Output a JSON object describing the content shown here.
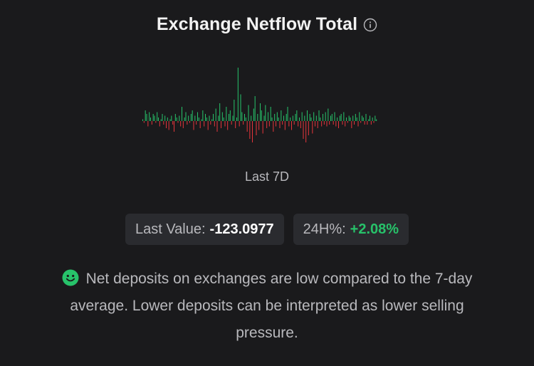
{
  "header": {
    "title": "Exchange Netflow Total",
    "info_icon": "info-circle-icon"
  },
  "chart_data": {
    "type": "bar",
    "caption": "Last 7D",
    "positive_color": "#27c26a",
    "negative_color": "#e5363b",
    "values": [
      1,
      -1,
      6,
      4,
      -3,
      5,
      2,
      -2,
      4,
      3,
      -1,
      5,
      2,
      -3,
      1,
      4,
      -2,
      3,
      -4,
      2,
      -5,
      1,
      3,
      -2,
      -6,
      4,
      2,
      -1,
      3,
      -3,
      8,
      -4,
      2,
      5,
      -2,
      3,
      -1,
      4,
      6,
      -5,
      3,
      -2,
      5,
      2,
      -4,
      1,
      6,
      -3,
      4,
      2,
      -5,
      3,
      -2,
      1,
      4,
      -3,
      7,
      -6,
      3,
      10,
      -4,
      5,
      2,
      -3,
      8,
      -5,
      4,
      6,
      -2,
      3,
      12,
      -4,
      2,
      30,
      -3,
      15,
      5,
      -2,
      4,
      2,
      -6,
      9,
      -10,
      3,
      -12,
      7,
      14,
      -8,
      4,
      -5,
      10,
      6,
      -7,
      3,
      9,
      -4,
      5,
      -3,
      8,
      2,
      -6,
      4,
      -3,
      5,
      2,
      -4,
      6,
      -2,
      3,
      -5,
      4,
      8,
      -3,
      2,
      -5,
      3,
      -2,
      4,
      6,
      -3,
      2,
      -4,
      5,
      -10,
      3,
      -12,
      6,
      -8,
      4,
      2,
      -7,
      5,
      -3,
      3,
      -4,
      6,
      2,
      -3,
      4,
      -2,
      5,
      -3,
      7,
      -2,
      3,
      4,
      -2,
      5,
      -3,
      2,
      -4,
      3,
      4,
      -2,
      5,
      -3,
      2,
      -1,
      3,
      2,
      -4,
      3,
      -2,
      4,
      2,
      -3,
      5,
      -1,
      3,
      2,
      -2,
      4,
      -2,
      1,
      3,
      -2,
      2,
      -1,
      3,
      1
    ]
  },
  "stats": {
    "last_value_label": "Last Value:",
    "last_value": "-123.0977",
    "change_label": "24H%:",
    "change_value": "+2.08%"
  },
  "message": {
    "icon": "smiley-face-icon",
    "text": "Net deposits on exchanges are low compared to the 7-day average. Lower deposits can be interpreted as lower selling pressure."
  }
}
